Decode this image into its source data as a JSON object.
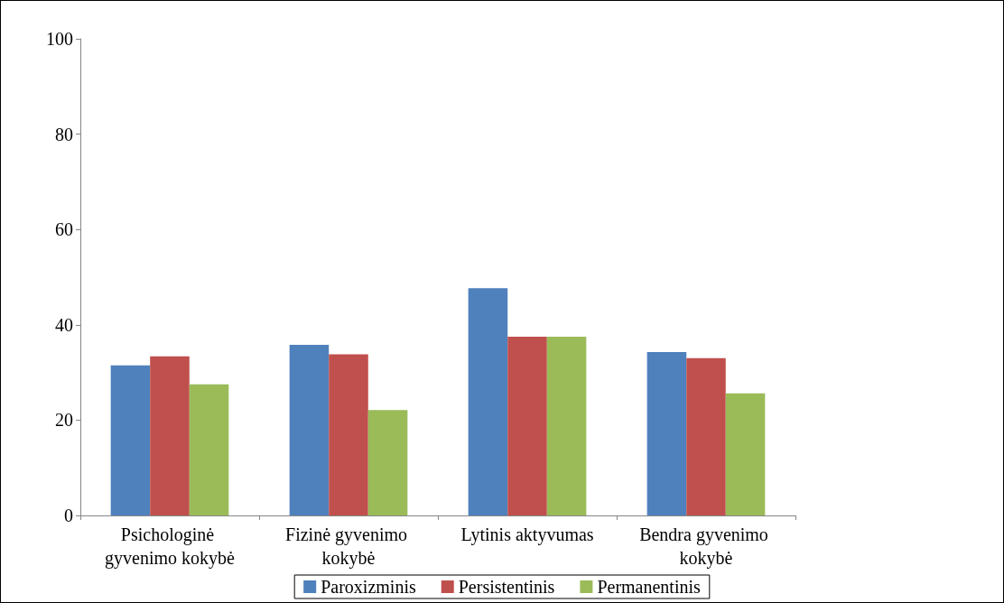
{
  "chart_data": {
    "type": "bar",
    "categories": [
      "Psichologinė gyvenimo kokybė",
      "Fizinė gyvenimo kokybė",
      "Lytinis aktyvumas",
      "Bendra gyvenimo kokybė"
    ],
    "series": [
      {
        "name": "Paroxizminis",
        "color": "#4f81bd",
        "values": [
          31.5,
          35.8,
          47.7,
          34.3
        ]
      },
      {
        "name": "Persistentinis",
        "color": "#c0504d",
        "values": [
          33.4,
          33.8,
          37.5,
          33.0
        ]
      },
      {
        "name": "Permanentinis",
        "color": "#9bbb59",
        "values": [
          27.5,
          22.1,
          37.5,
          25.6
        ]
      }
    ],
    "ylim": [
      0,
      100
    ],
    "yticks": [
      0,
      20,
      40,
      60,
      80,
      100
    ],
    "grid": false,
    "legend": "bottom"
  }
}
